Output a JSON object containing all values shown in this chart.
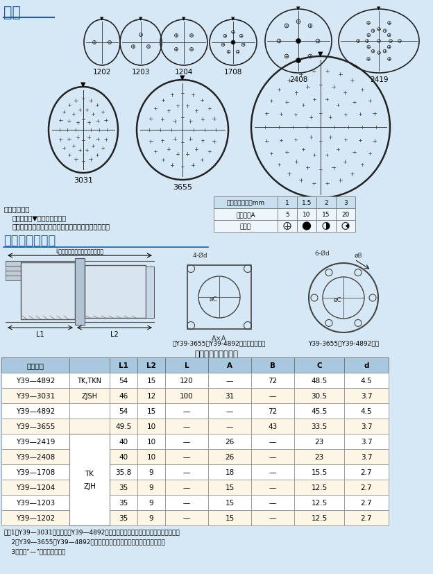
{
  "bg_color": "#d6e8f5",
  "title1": "型谱",
  "title2": "外形及安装尺寸",
  "spec_note_title": "型谱图说明：",
  "spec_note1": "型谱图中的▼表示主键位置。",
  "spec_note2": "型谱图中的孔位号，均指插合界面上插针的位置序号。",
  "contact_table_headers": [
    "接触件插配直径mm",
    "1",
    "1.5",
    "2",
    "3"
  ],
  "contact_table_row1": [
    "额定电流A",
    "5",
    "10",
    "15",
    "20"
  ],
  "contact_table_row2": [
    "表示符",
    "",
    "",
    "",
    ""
  ],
  "diagram_note1": "除Y39-3655、Y39-4892以外的其它插座",
  "diagram_note2": "Y39-3655、Y39-4892插座",
  "diagram_note3": "建议安装板开口尺寸",
  "table_header_color": "#a8c8e0",
  "table_odd_color": "#ffffff",
  "table_even_color": "#fdf5e6",
  "table_headers": [
    "型号规格",
    "",
    "L1",
    "L2",
    "L",
    "A",
    "B",
    "C",
    "d"
  ],
  "table_data": [
    [
      "Y39—4892",
      "TK,TKN",
      "54",
      "15",
      "120",
      "—",
      "72",
      "48.5",
      "4.5"
    ],
    [
      "Y39—3031",
      "ZJSH",
      "46",
      "12",
      "100",
      "31",
      "—",
      "30.5",
      "3.7"
    ],
    [
      "Y39—4892",
      "",
      "54",
      "15",
      "—",
      "—",
      "72",
      "45.5",
      "4.5"
    ],
    [
      "Y39—3655",
      "",
      "49.5",
      "10",
      "—",
      "—",
      "43",
      "33.5",
      "3.7"
    ],
    [
      "Y39—2419",
      "",
      "40",
      "10",
      "—",
      "26",
      "—",
      "23",
      "3.7"
    ],
    [
      "Y39—2408",
      "",
      "40",
      "10",
      "—",
      "26",
      "—",
      "23",
      "3.7"
    ],
    [
      "Y39—1708",
      "",
      "35.8",
      "9",
      "—",
      "18",
      "—",
      "15.5",
      "2.7"
    ],
    [
      "Y39—1204",
      "",
      "35",
      "9",
      "—",
      "15",
      "—",
      "12.5",
      "2.7"
    ],
    [
      "Y39—1203",
      "",
      "35",
      "9",
      "—",
      "15",
      "—",
      "12.5",
      "2.7"
    ],
    [
      "Y39—1202",
      "",
      "35",
      "9",
      "—",
      "15",
      "—",
      "12.5",
      "2.7"
    ]
  ],
  "note1": "注：1）Y39—3031为穿墙式，Y39—4892有仪器式和穿墙式两种，其余产品为仪器式；",
  "note2": "    2）Y39—3655、Y39—4892插座为圆形法兰盘，其余插座为方形法兰盘；",
  "note3": "    3）表中“—”表示无此尺寸。"
}
